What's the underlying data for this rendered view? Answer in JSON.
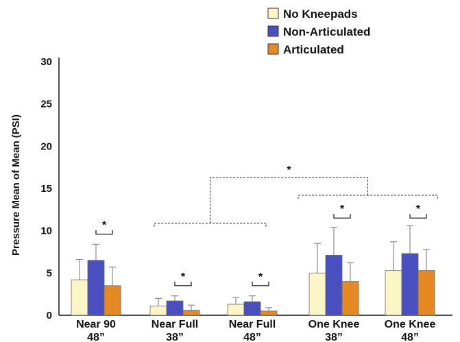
{
  "chart_data": {
    "type": "bar",
    "title": "",
    "xlabel": "",
    "ylabel": "Pressure Mean of Mean (PSI)",
    "ylim": [
      0,
      30
    ],
    "yticks": [
      0,
      5,
      10,
      15,
      20,
      25,
      30
    ],
    "categories": [
      {
        "line1": "Near 90",
        "line2": "48”"
      },
      {
        "line1": "Near Full",
        "line2": "38”"
      },
      {
        "line1": "Near Full",
        "line2": "48”"
      },
      {
        "line1": "One Knee",
        "line2": "38”"
      },
      {
        "line1": "One Knee",
        "line2": "48”"
      }
    ],
    "series": [
      {
        "name": "No Kneepads",
        "color": "#fbf6c6",
        "values": [
          4.2,
          1.1,
          1.3,
          5.0,
          5.3
        ],
        "errors": [
          2.4,
          0.9,
          0.8,
          3.5,
          3.4
        ]
      },
      {
        "name": "Non-Articulated",
        "color": "#4a4fbf",
        "values": [
          6.5,
          1.7,
          1.6,
          7.1,
          7.3
        ],
        "errors": [
          1.9,
          0.6,
          0.7,
          3.3,
          3.3
        ]
      },
      {
        "name": "Articulated",
        "color": "#e58a22",
        "values": [
          3.5,
          0.6,
          0.5,
          4.0,
          5.3
        ],
        "errors": [
          2.2,
          0.6,
          0.4,
          2.2,
          2.5
        ]
      }
    ],
    "significance": [
      {
        "label": "*",
        "from_category": 0,
        "to_category": 0,
        "from_series": 1,
        "to_series": 2,
        "y": 9.6
      },
      {
        "label": "*",
        "from_category": 1,
        "to_category": 1,
        "from_series": 1,
        "to_series": 2,
        "y": 3.5
      },
      {
        "label": "*",
        "from_category": 2,
        "to_category": 2,
        "from_series": 1,
        "to_series": 2,
        "y": 3.5
      },
      {
        "label": "*",
        "from_category": 3,
        "to_category": 3,
        "from_series": 1,
        "to_series": 2,
        "y": 11.5
      },
      {
        "label": "*",
        "from_category": 4,
        "to_category": 4,
        "from_series": 1,
        "to_series": 2,
        "y": 11.5
      }
    ],
    "group_comparison": {
      "label": "*",
      "left_group": [
        1,
        2
      ],
      "right_group": [
        3,
        4
      ],
      "left_y": 10.9,
      "right_y": 14.2,
      "top_y": 16.3
    },
    "legend_position": "top-right",
    "grid": false
  }
}
